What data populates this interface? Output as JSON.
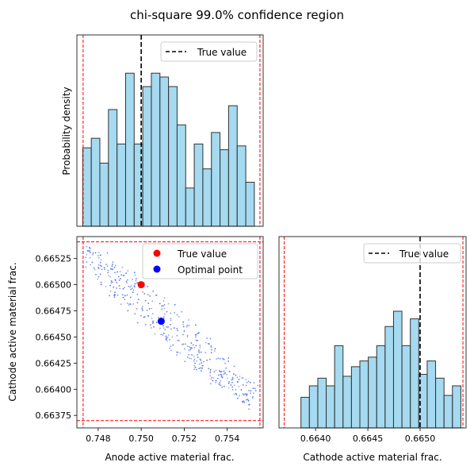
{
  "figure": {
    "title": "chi-square 99.0% confidence region"
  },
  "colors": {
    "hist_fill": "#87CEEB",
    "hist_edge": "#333333",
    "bound": "#FF0000",
    "true_line": "#000000",
    "true_point": "#FF0000",
    "optimal_point": "#0000FF",
    "samples": "#4466DD"
  },
  "chart_data": [
    {
      "id": "anode-hist",
      "type": "bar",
      "subtype": "histogram",
      "xlim": [
        0.74701,
        0.75567
      ],
      "ylabel": "Probability density",
      "y_ticks_visible": false,
      "bin_range": [
        0.74728,
        0.75526
      ],
      "relative_heights": [
        0.41,
        0.46,
        0.33,
        0.61,
        0.43,
        0.8,
        0.43,
        0.73,
        0.8,
        0.78,
        0.73,
        0.53,
        0.2,
        0.43,
        0.3,
        0.49,
        0.4,
        0.63,
        0.42,
        0.23
      ],
      "bounds": [
        0.7473,
        0.75552
      ],
      "true_value": 0.75,
      "legend": [
        {
          "label": "True value",
          "style": "dashed-line"
        }
      ],
      "legend_position": "top-right"
    },
    {
      "id": "corner-scatter",
      "type": "scatter",
      "xlabel": "Anode active material frac.",
      "ylabel": "Cathode active material frac.",
      "xlim": [
        0.74701,
        0.75567
      ],
      "ylim": [
        0.66363,
        0.66546
      ],
      "x_ticks": [
        "0.748",
        "0.750",
        "0.752",
        "0.754"
      ],
      "y_ticks": [
        "0.66525",
        "0.66500",
        "0.66475",
        "0.66450",
        "0.66425",
        "0.66400",
        "0.66375"
      ],
      "bounds_x": [
        0.7473,
        0.75552
      ],
      "bounds_y": [
        0.6637,
        0.66541
      ],
      "true_point": [
        0.75,
        0.665
      ],
      "optimal_point": [
        0.75093,
        0.66465
      ],
      "sample_cloud": {
        "axis_from": [
          0.74745,
          0.6653
        ],
        "axis_to": [
          0.75525,
          0.6639
        ],
        "half_width": 0.00021,
        "count": 420
      },
      "legend": [
        {
          "label": "True value",
          "style": "red-dot"
        },
        {
          "label": "Optimal point",
          "style": "blue-dot"
        }
      ],
      "legend_position": "top-right"
    },
    {
      "id": "cathode-hist",
      "type": "bar",
      "subtype": "histogram",
      "xlabel": "Cathode active material frac.",
      "xlim": [
        0.66365,
        0.66544
      ],
      "x_ticks": [
        "0.6640",
        "0.6645",
        "0.6650"
      ],
      "y_ticks_visible": false,
      "bin_range": [
        0.66386,
        0.66539
      ],
      "relative_heights": [
        0.16,
        0.22,
        0.26,
        0.22,
        0.43,
        0.27,
        0.32,
        0.35,
        0.37,
        0.43,
        0.53,
        0.61,
        0.43,
        0.57,
        0.28,
        0.35,
        0.26,
        0.17,
        0.22
      ],
      "bounds": [
        0.6637,
        0.66541
      ],
      "true_value": 0.665,
      "legend": [
        {
          "label": "True value",
          "style": "dashed-line"
        }
      ],
      "legend_position": "top-right"
    }
  ]
}
